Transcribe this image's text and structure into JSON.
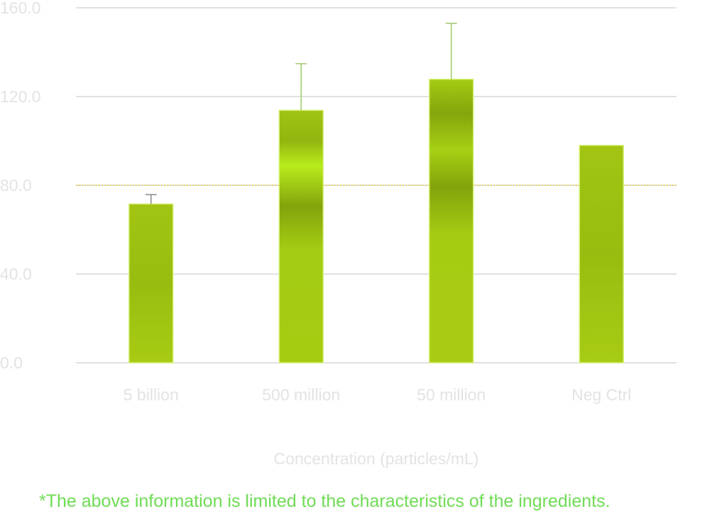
{
  "chart_data": {
    "type": "bar",
    "categories": [
      "5 billion",
      "500 million",
      "50 million",
      "Neg Ctrl"
    ],
    "values": [
      71.6,
      113.8,
      127.8,
      98.0
    ],
    "error_upper": [
      75.8,
      134.8,
      153.0,
      null
    ],
    "yticks": [
      "0.0",
      "40.0",
      "80.0",
      "120.0",
      "160.0"
    ],
    "ylim": [
      0,
      160
    ],
    "reference_line": 80,
    "xlabel": "Concentration (particles/mL)",
    "ylabel": "",
    "grid": true,
    "colors": {
      "bar": "#a6cc12",
      "bar_dark": "#84a30c",
      "bar_highlight": "#b8ec1c",
      "bar_edge": "#d7f07a",
      "error_bar_green": "#9fca6a",
      "error_bar_gray": "#8a8a8a",
      "grid": "#cfcfcf",
      "reference_line": "#d8c21a",
      "label": "#e3e3e3",
      "footnote": "#6fdc55"
    }
  },
  "footnote": "*The above information is limited to the characteristics of the ingredients."
}
